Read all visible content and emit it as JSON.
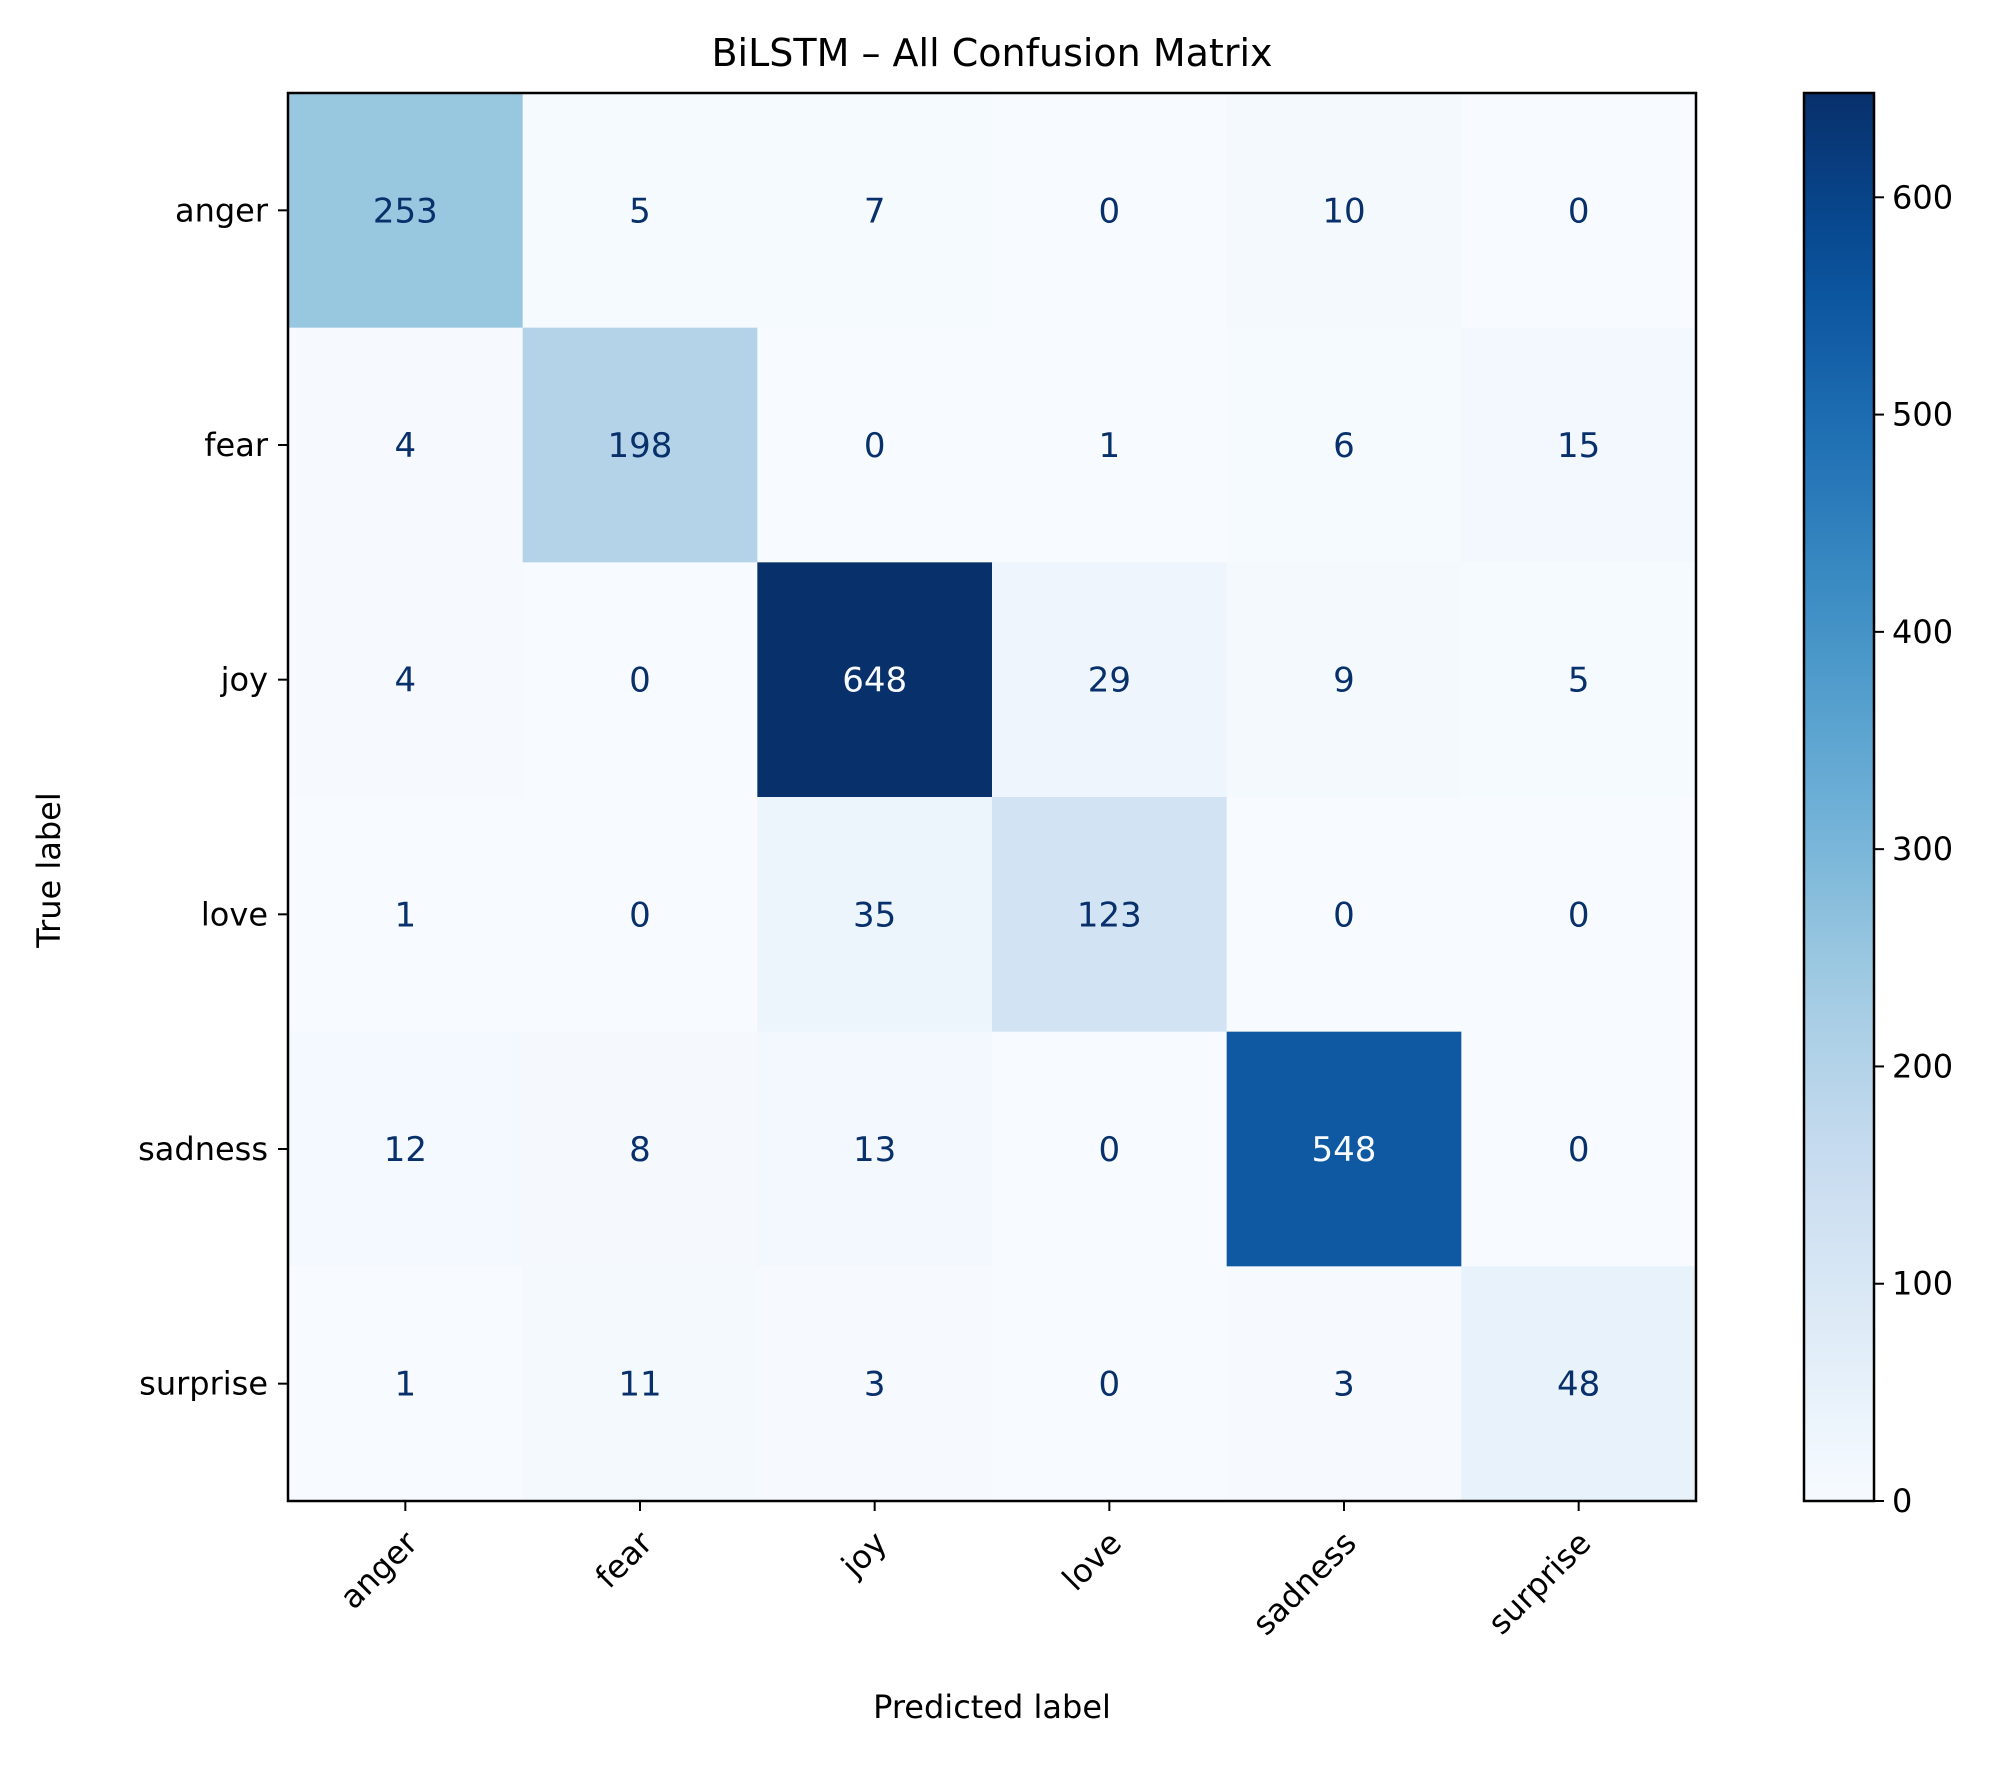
{
  "chart_data": {
    "type": "heatmap",
    "title": "BiLSTM – All Confusion Matrix",
    "xlabel": "Predicted label",
    "ylabel": "True label",
    "x_categories": [
      "anger",
      "fear",
      "joy",
      "love",
      "sadness",
      "surprise"
    ],
    "y_categories": [
      "anger",
      "fear",
      "joy",
      "love",
      "sadness",
      "surprise"
    ],
    "values": [
      [
        253,
        5,
        7,
        0,
        10,
        0
      ],
      [
        4,
        198,
        0,
        1,
        6,
        15
      ],
      [
        4,
        0,
        648,
        29,
        9,
        5
      ],
      [
        1,
        0,
        35,
        123,
        0,
        0
      ],
      [
        12,
        8,
        13,
        0,
        548,
        0
      ],
      [
        1,
        11,
        3,
        0,
        3,
        48
      ]
    ],
    "colormap": "Blues",
    "colorbar": {
      "min": 0,
      "max": 648,
      "ticks": [
        0,
        100,
        200,
        300,
        400,
        500,
        600
      ]
    },
    "grid": false,
    "x_tick_rotation_deg": 45
  }
}
